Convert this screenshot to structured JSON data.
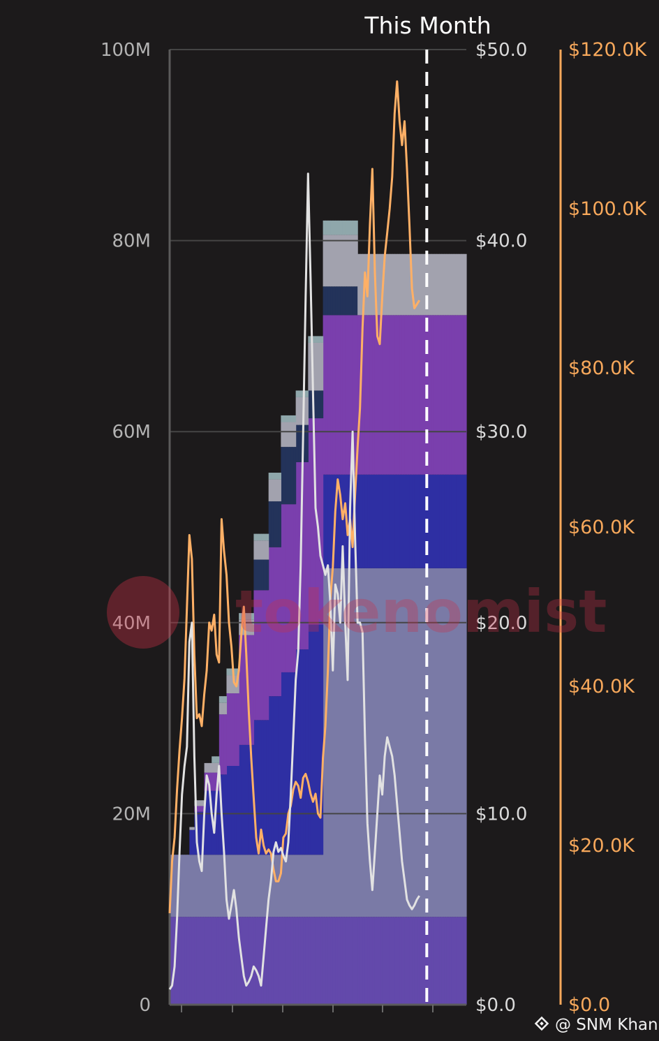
{
  "chart_data": {
    "type": "area",
    "annotation": "This Month",
    "watermark": "tokenomist",
    "credit": "@ SNM Khan",
    "left_axis": {
      "ticks": [
        "0",
        "20M",
        "40M",
        "60M",
        "80M",
        "100M"
      ],
      "ylim": [
        0,
        100000000
      ]
    },
    "right_axis": {
      "ticks": [
        "$0.0",
        "$10.0",
        "$20.0",
        "$30.0",
        "$40.0",
        "$50.0"
      ],
      "ylim": [
        0,
        50
      ]
    },
    "far_right_axis": {
      "ticks": [
        "$0.0",
        "$20.0K",
        "$40.0K",
        "$60.0K",
        "$80.0K",
        "$100.0K",
        "$120.0K"
      ],
      "ylim": [
        0,
        120000
      ]
    },
    "x_index_range": [
      0,
      120
    ],
    "this_month_index": 104,
    "stacked_areas": [
      {
        "color": "#6349ab",
        "steps": [
          [
            0,
            9.2
          ]
        ]
      },
      {
        "color": "#7a7aa6",
        "steps": [
          [
            0,
            6.5
          ],
          [
            62,
            36.5
          ]
        ]
      },
      {
        "color": "#2e2fa3",
        "steps": [
          [
            3,
            0.0
          ],
          [
            8,
            2.6
          ],
          [
            10,
            4.5
          ],
          [
            14,
            6.7
          ],
          [
            20,
            8.4
          ],
          [
            23,
            9.3
          ],
          [
            28,
            11.5
          ],
          [
            34,
            14.1
          ],
          [
            40,
            16.6
          ],
          [
            45,
            19.1
          ],
          [
            51,
            21.5
          ],
          [
            56,
            24.1
          ],
          [
            62,
            9.8
          ]
        ]
      },
      {
        "color": "#7a3fad",
        "steps": [
          [
            8,
            0.0
          ],
          [
            10,
            0.6
          ],
          [
            14,
            1.9
          ],
          [
            20,
            6.3
          ],
          [
            23,
            7.6
          ],
          [
            28,
            11.5
          ],
          [
            34,
            13.6
          ],
          [
            40,
            15.6
          ],
          [
            45,
            17.6
          ],
          [
            51,
            19.6
          ],
          [
            56,
            21.6
          ],
          [
            62,
            16.7
          ]
        ]
      },
      {
        "color": "#23335a",
        "steps": [
          [
            28,
            0.0
          ],
          [
            34,
            3.2
          ],
          [
            40,
            4.8
          ],
          [
            45,
            6.0
          ],
          [
            51,
            3.9
          ],
          [
            56,
            2.9
          ],
          [
            62,
            3.0
          ],
          [
            76,
            0.0
          ],
          [
            90,
            0.0
          ],
          [
            104,
            0.0
          ],
          [
            110,
            0.0
          ]
        ]
      },
      {
        "color": "#a2a2ae",
        "steps": [
          [
            8,
            0.3
          ],
          [
            10,
            0.6
          ],
          [
            14,
            1.0
          ],
          [
            20,
            1.2
          ],
          [
            23,
            1.9
          ],
          [
            28,
            1.6
          ],
          [
            34,
            2.0
          ],
          [
            40,
            2.3
          ],
          [
            45,
            2.6
          ],
          [
            51,
            2.9
          ],
          [
            56,
            5.0
          ],
          [
            62,
            5.4
          ],
          [
            76,
            6.4
          ],
          [
            90,
            6.4
          ],
          [
            104,
            6.4
          ],
          [
            110,
            6.4
          ]
        ]
      },
      {
        "color": "#8fa7ab",
        "steps": [
          [
            17,
            0.7
          ],
          [
            23,
            0.7
          ],
          [
            28,
            0.7
          ],
          [
            34,
            0.7
          ],
          [
            40,
            0.7
          ],
          [
            45,
            0.7
          ],
          [
            51,
            0.7
          ],
          [
            56,
            0.7
          ],
          [
            62,
            1.5
          ],
          [
            76,
            0.0
          ],
          [
            90,
            0.0
          ],
          [
            104,
            0.0
          ],
          [
            110,
            0.0
          ]
        ]
      }
    ],
    "series": [
      {
        "color": "#ffb066",
        "axis": "far_right",
        "points": [
          [
            0,
            11500
          ],
          [
            1,
            18000
          ],
          [
            2,
            21000
          ],
          [
            3,
            27000
          ],
          [
            4,
            32000
          ],
          [
            5,
            36000
          ],
          [
            6,
            41000
          ],
          [
            7,
            50000
          ],
          [
            8,
            59000
          ],
          [
            9,
            56000
          ],
          [
            10,
            44000
          ],
          [
            11,
            36000
          ],
          [
            12,
            36500
          ],
          [
            13,
            35000
          ],
          [
            14,
            39000
          ],
          [
            15,
            42000
          ],
          [
            16,
            48000
          ],
          [
            17,
            47000
          ],
          [
            18,
            49000
          ],
          [
            19,
            44000
          ],
          [
            20,
            43000
          ],
          [
            21,
            61000
          ],
          [
            22,
            57000
          ],
          [
            23,
            54000
          ],
          [
            24,
            48000
          ],
          [
            25,
            45000
          ],
          [
            26,
            40500
          ],
          [
            27,
            40000
          ],
          [
            28,
            42000
          ],
          [
            29,
            46500
          ],
          [
            30,
            50000
          ],
          [
            31,
            44000
          ],
          [
            32,
            37000
          ],
          [
            33,
            31000
          ],
          [
            34,
            26000
          ],
          [
            35,
            21000
          ],
          [
            36,
            19000
          ],
          [
            37,
            22000
          ],
          [
            38,
            20000
          ],
          [
            39,
            19000
          ],
          [
            40,
            19500
          ],
          [
            41,
            19000
          ],
          [
            42,
            17000
          ],
          [
            43,
            15500
          ],
          [
            44,
            15500
          ],
          [
            45,
            16500
          ],
          [
            46,
            21000
          ],
          [
            47,
            21500
          ],
          [
            48,
            24000
          ],
          [
            49,
            25000
          ],
          [
            50,
            27000
          ],
          [
            51,
            28000
          ],
          [
            52,
            27500
          ],
          [
            53,
            26000
          ],
          [
            54,
            28500
          ],
          [
            55,
            29000
          ],
          [
            56,
            28000
          ],
          [
            57,
            26500
          ],
          [
            58,
            25500
          ],
          [
            59,
            26500
          ],
          [
            60,
            24000
          ],
          [
            61,
            23500
          ],
          [
            62,
            31000
          ],
          [
            63,
            35000
          ],
          [
            64,
            42000
          ],
          [
            65,
            51000
          ],
          [
            66,
            55000
          ],
          [
            67,
            62000
          ],
          [
            68,
            66000
          ],
          [
            69,
            64000
          ],
          [
            70,
            61000
          ],
          [
            71,
            63000
          ],
          [
            72,
            59000
          ],
          [
            73,
            61000
          ],
          [
            74,
            57500
          ],
          [
            75,
            64000
          ],
          [
            76,
            70000
          ],
          [
            77,
            75000
          ],
          [
            78,
            85000
          ],
          [
            79,
            92000
          ],
          [
            80,
            89000
          ],
          [
            81,
            98000
          ],
          [
            82,
            105000
          ],
          [
            83,
            92000
          ],
          [
            84,
            84000
          ],
          [
            85,
            83000
          ],
          [
            86,
            89000
          ],
          [
            87,
            94000
          ],
          [
            88,
            97000
          ],
          [
            89,
            100000
          ],
          [
            90,
            104000
          ],
          [
            91,
            112000
          ],
          [
            92,
            116000
          ],
          [
            93,
            111000
          ],
          [
            94,
            108000
          ],
          [
            95,
            111000
          ],
          [
            96,
            105000
          ],
          [
            97,
            98000
          ],
          [
            98,
            90000
          ],
          [
            99,
            87500
          ],
          [
            100,
            88000
          ],
          [
            101,
            88500
          ]
        ]
      },
      {
        "color": "#e2e2e2",
        "axis": "right",
        "points": [
          [
            0,
            0.8
          ],
          [
            1,
            1.0
          ],
          [
            2,
            2.0
          ],
          [
            3,
            4.5
          ],
          [
            4,
            8.0
          ],
          [
            5,
            11.0
          ],
          [
            6,
            12.5
          ],
          [
            7,
            13.5
          ],
          [
            8,
            19.0
          ],
          [
            9,
            20.0
          ],
          [
            10,
            13.0
          ],
          [
            11,
            8.5
          ],
          [
            12,
            7.5
          ],
          [
            13,
            7.0
          ],
          [
            14,
            10.0
          ],
          [
            15,
            12.0
          ],
          [
            16,
            11.5
          ],
          [
            17,
            10.0
          ],
          [
            18,
            9.0
          ],
          [
            19,
            11.0
          ],
          [
            20,
            12.5
          ],
          [
            21,
            10.0
          ],
          [
            22,
            8.0
          ],
          [
            23,
            5.5
          ],
          [
            24,
            4.5
          ],
          [
            25,
            5.2
          ],
          [
            26,
            6.0
          ],
          [
            27,
            5.0
          ],
          [
            28,
            3.5
          ],
          [
            29,
            2.5
          ],
          [
            30,
            1.5
          ],
          [
            31,
            1.0
          ],
          [
            32,
            1.2
          ],
          [
            33,
            1.5
          ],
          [
            34,
            2.0
          ],
          [
            35,
            1.8
          ],
          [
            36,
            1.5
          ],
          [
            37,
            1.0
          ],
          [
            38,
            2.5
          ],
          [
            39,
            4.0
          ],
          [
            40,
            5.5
          ],
          [
            41,
            6.5
          ],
          [
            42,
            8.0
          ],
          [
            43,
            8.5
          ],
          [
            44,
            8.0
          ],
          [
            45,
            8.2
          ],
          [
            46,
            7.8
          ],
          [
            47,
            7.5
          ],
          [
            48,
            8.5
          ],
          [
            49,
            11.0
          ],
          [
            50,
            14.0
          ],
          [
            51,
            17.0
          ],
          [
            52,
            18.5
          ],
          [
            53,
            23.0
          ],
          [
            54,
            30.0
          ],
          [
            55,
            37.0
          ],
          [
            56,
            43.5
          ],
          [
            57,
            38.0
          ],
          [
            58,
            32.0
          ],
          [
            59,
            26.0
          ],
          [
            60,
            25.0
          ],
          [
            61,
            23.5
          ],
          [
            62,
            23.0
          ],
          [
            63,
            22.5
          ],
          [
            64,
            23.0
          ],
          [
            65,
            21.0
          ],
          [
            66,
            17.5
          ],
          [
            67,
            22.0
          ],
          [
            68,
            21.5
          ],
          [
            69,
            20.0
          ],
          [
            70,
            24.0
          ],
          [
            71,
            20.0
          ],
          [
            72,
            17.0
          ],
          [
            73,
            26.0
          ],
          [
            74,
            30.0
          ],
          [
            75,
            24.5
          ],
          [
            76,
            20.0
          ],
          [
            77,
            20.0
          ],
          [
            78,
            19.5
          ],
          [
            79,
            14.0
          ],
          [
            80,
            9.5
          ],
          [
            81,
            7.5
          ],
          [
            82,
            6.0
          ],
          [
            83,
            8.0
          ],
          [
            84,
            10.0
          ],
          [
            85,
            12.0
          ],
          [
            86,
            11.0
          ],
          [
            87,
            13.0
          ],
          [
            88,
            14.0
          ],
          [
            89,
            13.5
          ],
          [
            90,
            13.0
          ],
          [
            91,
            12.0
          ],
          [
            92,
            10.5
          ],
          [
            93,
            9.0
          ],
          [
            94,
            7.5
          ],
          [
            95,
            6.5
          ],
          [
            96,
            5.5
          ],
          [
            97,
            5.2
          ],
          [
            98,
            5.0
          ],
          [
            99,
            5.2
          ],
          [
            100,
            5.5
          ],
          [
            101,
            5.7
          ]
        ]
      }
    ],
    "axis_colors": {
      "far_right": "#f7a85b",
      "right": "#dadada",
      "left": "#b3b3b3",
      "grid": "#454545",
      "annotation": "#ffffff"
    }
  }
}
